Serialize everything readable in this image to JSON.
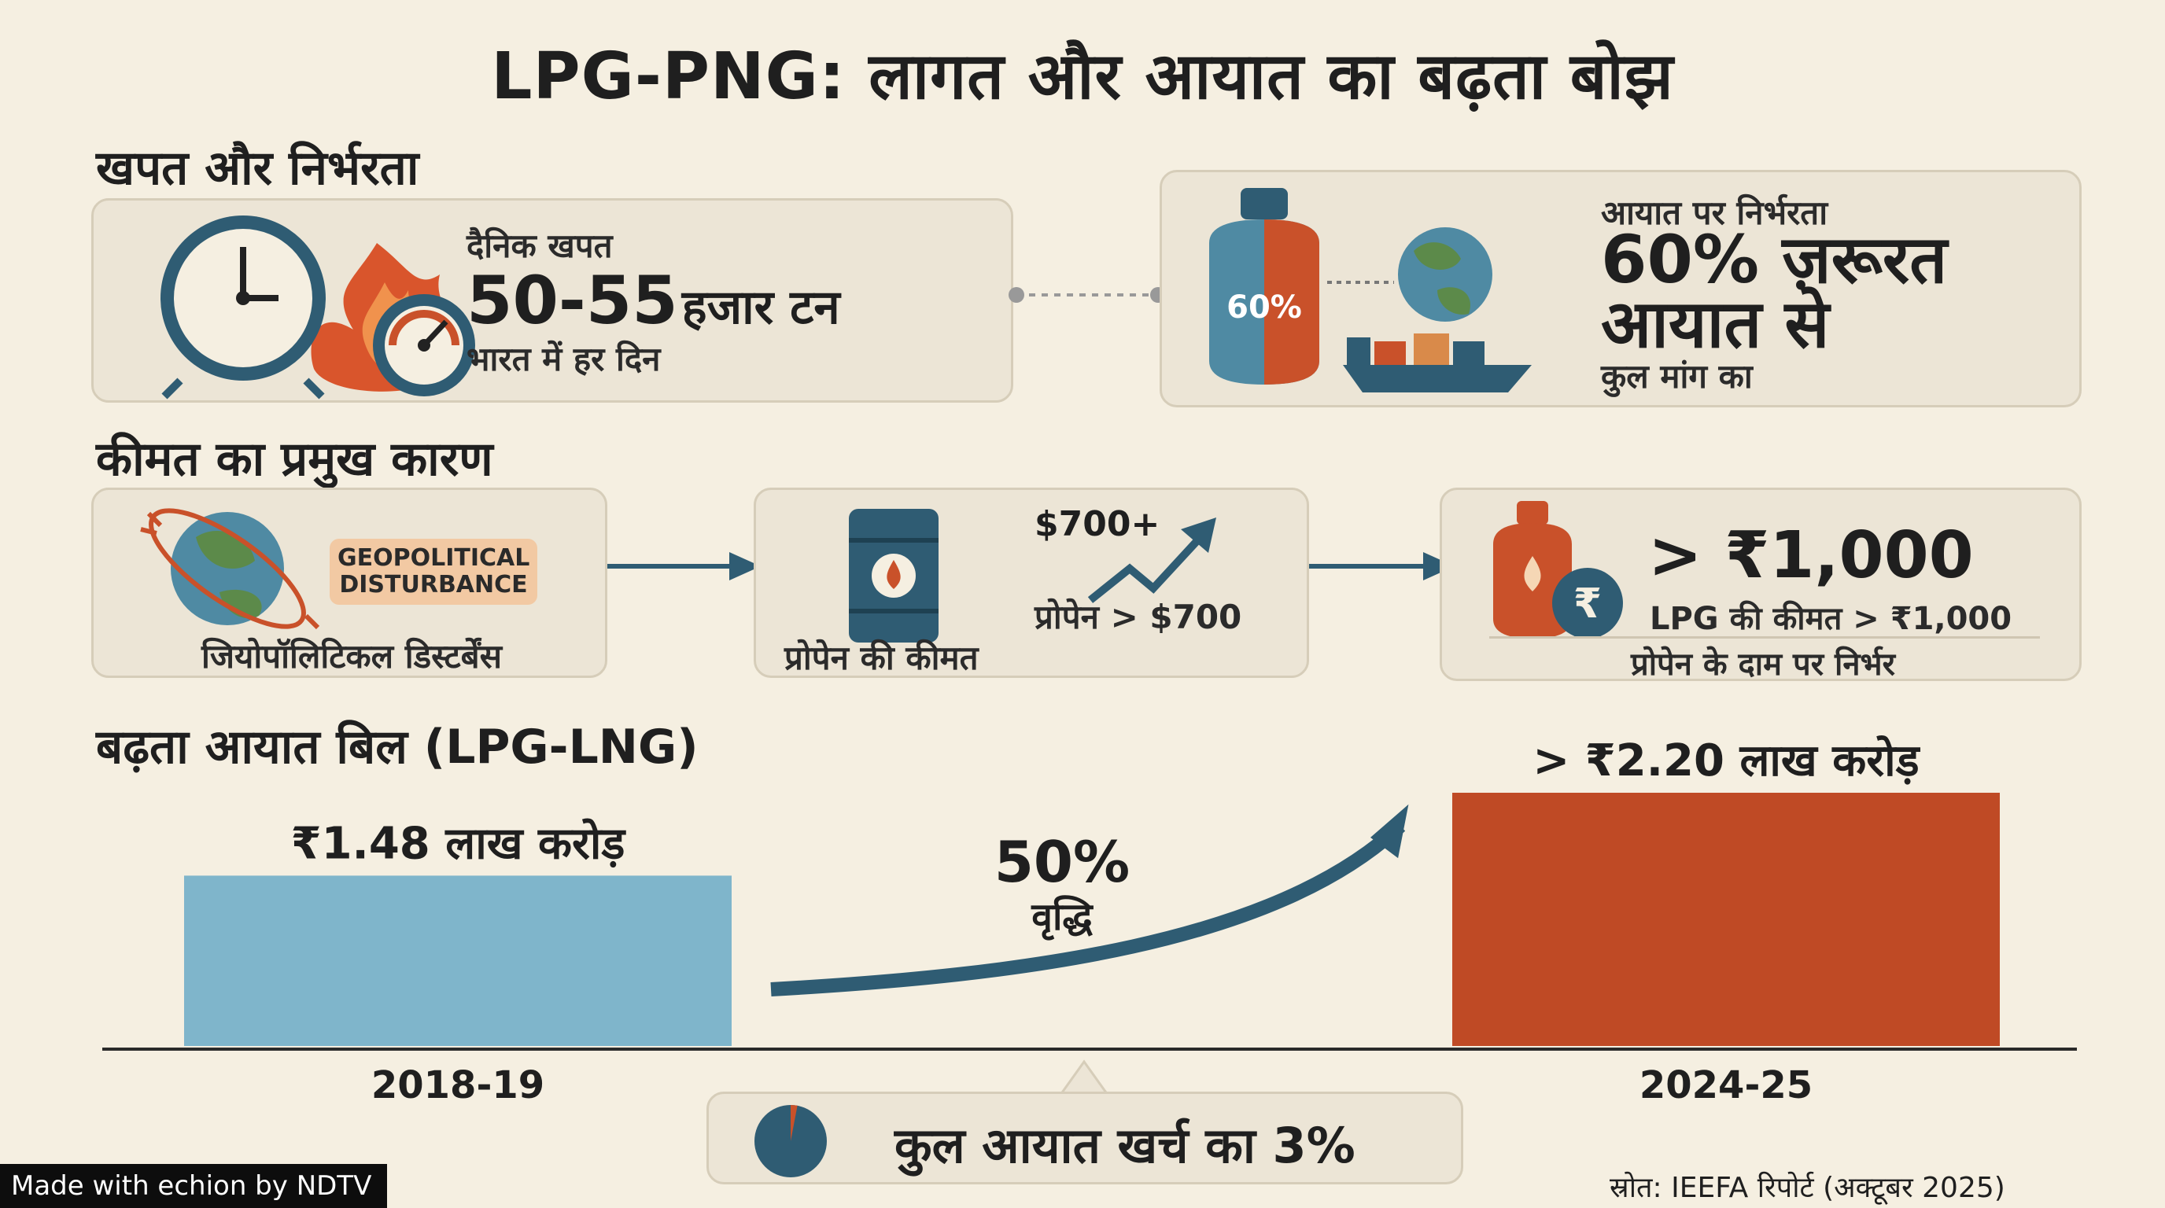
{
  "title": "LPG-PNG: लागत और आयात का बढ़ता बोझ",
  "section1": {
    "heading": "खपत और निर्भरता",
    "daily": {
      "label": "दैनिक खपत",
      "value": "50-55",
      "unit": "हजार टन",
      "sub": "भारत में हर दिन"
    },
    "import": {
      "label": "आयात पर निर्भरता",
      "line1": "60% ज़रूरत",
      "line2": "आयात से",
      "sub": "कुल मांग का",
      "cylinder_text": "60%"
    }
  },
  "section2": {
    "heading": "कीमत का प्रमुख कारण",
    "geo": {
      "badge": "GEOPOLITICAL DISTURBANCE",
      "caption": "जियोपॉलिटिकल डिस्टर्बेंस"
    },
    "propane": {
      "price": "$700+",
      "compare": "प्रोपेन > $700",
      "caption": "प्रोपेन की कीमत"
    },
    "lpg": {
      "price": "> ₹1,000",
      "compare": "LPG की कीमत > ₹1,000",
      "caption": "प्रोपेन के दाम पर निर्भर"
    }
  },
  "section3": {
    "heading": "बढ़ता आयात बिल (LPG-LNG)",
    "growth_value": "50%",
    "growth_label": "वृद्धि",
    "share_text": "कुल आयात खर्च का 3%"
  },
  "chart_data": {
    "type": "bar",
    "categories": [
      "2018-19",
      "2024-25"
    ],
    "values": [
      1.48,
      2.2
    ],
    "value_labels": [
      "₹1.48 लाख करोड़",
      "> ₹2.20 लाख करोड़"
    ],
    "colors": [
      "#7fb5cb",
      "#bf4a25"
    ],
    "ylim": [
      0,
      2.2
    ],
    "grid": false
  },
  "share_fraction": 0.03,
  "source": "स्रोत: IEEFA रिपोर्ट (अक्टूबर 2025)",
  "branding": "Made with echion by NDTV",
  "colors": {
    "blue": "#2f5c73",
    "orange": "#c9512a",
    "card": "#ece5d6"
  }
}
